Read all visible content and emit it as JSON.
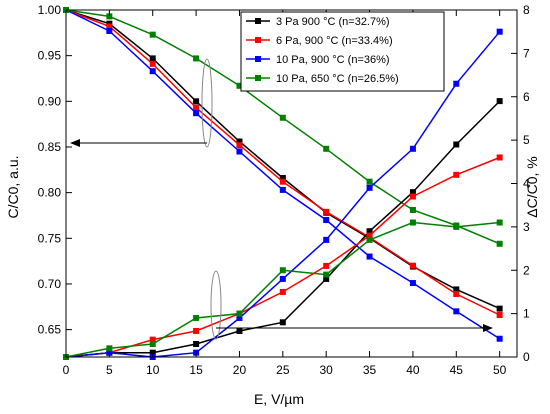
{
  "chart_data": {
    "type": "line",
    "x": [
      0,
      5,
      10,
      15,
      20,
      25,
      30,
      35,
      40,
      45,
      50
    ],
    "xlabel": "E, V/µm",
    "ylabel_left": "C/C0, a.u.",
    "ylabel_right": "ΔC/C0, %",
    "xlim": [
      0,
      52
    ],
    "ylim_left": [
      0.62,
      1.0
    ],
    "ylim_right": [
      0,
      8
    ],
    "x_ticks": [
      "0",
      "5",
      "10",
      "15",
      "20",
      "25",
      "30",
      "35",
      "40",
      "45",
      "50"
    ],
    "y_left_ticks": [
      "0.65",
      "0.70",
      "0.75",
      "0.80",
      "0.85",
      "0.90",
      "0.95",
      "1.00"
    ],
    "y_right_ticks": [
      "0",
      "1",
      "2",
      "3",
      "4",
      "5",
      "6",
      "7",
      "8"
    ],
    "grid": false,
    "legend_position": "top-right",
    "series": [
      {
        "name": "3 Pa 900 °C (n=32.7%)",
        "color": "#000000",
        "axis": "left",
        "values": [
          1.0,
          0.985,
          0.947,
          0.9,
          0.856,
          0.816,
          0.778,
          0.75,
          0.719,
          0.694,
          0.673
        ]
      },
      {
        "name": "6 Pa, 900 °C (n=33.4%)",
        "color": "#ff0000",
        "axis": "left",
        "values": [
          1.0,
          0.982,
          0.941,
          0.893,
          0.852,
          0.812,
          0.779,
          0.751,
          0.72,
          0.689,
          0.666
        ]
      },
      {
        "name": "10 Pa, 900 °C (n=36%)",
        "color": "#0000ff",
        "axis": "left",
        "values": [
          1.0,
          0.977,
          0.933,
          0.887,
          0.845,
          0.803,
          0.77,
          0.73,
          0.701,
          0.67,
          0.64
        ]
      },
      {
        "name": "10 Pa, 650 °C (n=26.5%)",
        "color": "#008000",
        "axis": "left",
        "values": [
          1.0,
          0.993,
          0.973,
          0.947,
          0.917,
          0.882,
          0.848,
          0.812,
          0.781,
          0.764,
          0.744
        ]
      },
      {
        "name": "",
        "color": "#000000",
        "axis": "right",
        "values": [
          0,
          0.1,
          0.1,
          0.3,
          0.6,
          0.8,
          1.8,
          2.9,
          3.8,
          4.9,
          5.9
        ]
      },
      {
        "name": "",
        "color": "#ff0000",
        "axis": "right",
        "values": [
          0,
          0.1,
          0.4,
          0.6,
          1.0,
          1.5,
          2.1,
          2.8,
          3.7,
          4.2,
          4.6
        ]
      },
      {
        "name": "",
        "color": "#0000ff",
        "axis": "right",
        "values": [
          0,
          0.1,
          0.0,
          0.1,
          0.9,
          1.8,
          2.7,
          3.9,
          4.8,
          6.3,
          7.5
        ]
      },
      {
        "name": "",
        "color": "#008000",
        "axis": "right",
        "values": [
          0,
          0.2,
          0.3,
          0.9,
          1.0,
          2.0,
          1.9,
          2.7,
          3.1,
          3.0,
          3.1
        ]
      }
    ]
  }
}
